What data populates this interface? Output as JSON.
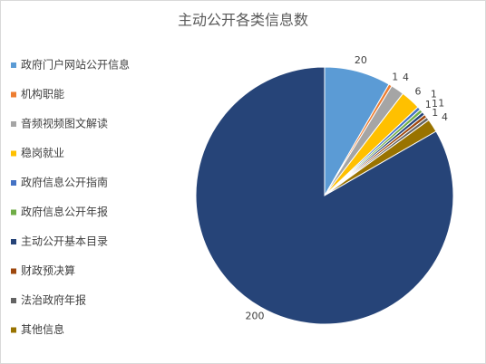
{
  "chart_data": {
    "type": "pie",
    "title": "主动公开各类信息数",
    "categories": [
      "政府门户网站公开信息",
      "机构职能",
      "音频视频图文解读",
      "稳岗就业",
      "政府信息公开指南",
      "政府信息公开年报",
      "主动公开基本目录",
      "财政预决算",
      "法治政府年报",
      "其他信息",
      null
    ],
    "values": [
      20,
      1,
      4,
      6,
      1,
      1,
      1,
      1,
      1,
      4,
      200
    ],
    "colors": [
      "#5b9bd5",
      "#ed7d31",
      "#a5a5a5",
      "#ffc000",
      "#4472c4",
      "#70ad47",
      "#264478",
      "#9e480e",
      "#636363",
      "#997300",
      "#264478"
    ],
    "legend": "left"
  }
}
